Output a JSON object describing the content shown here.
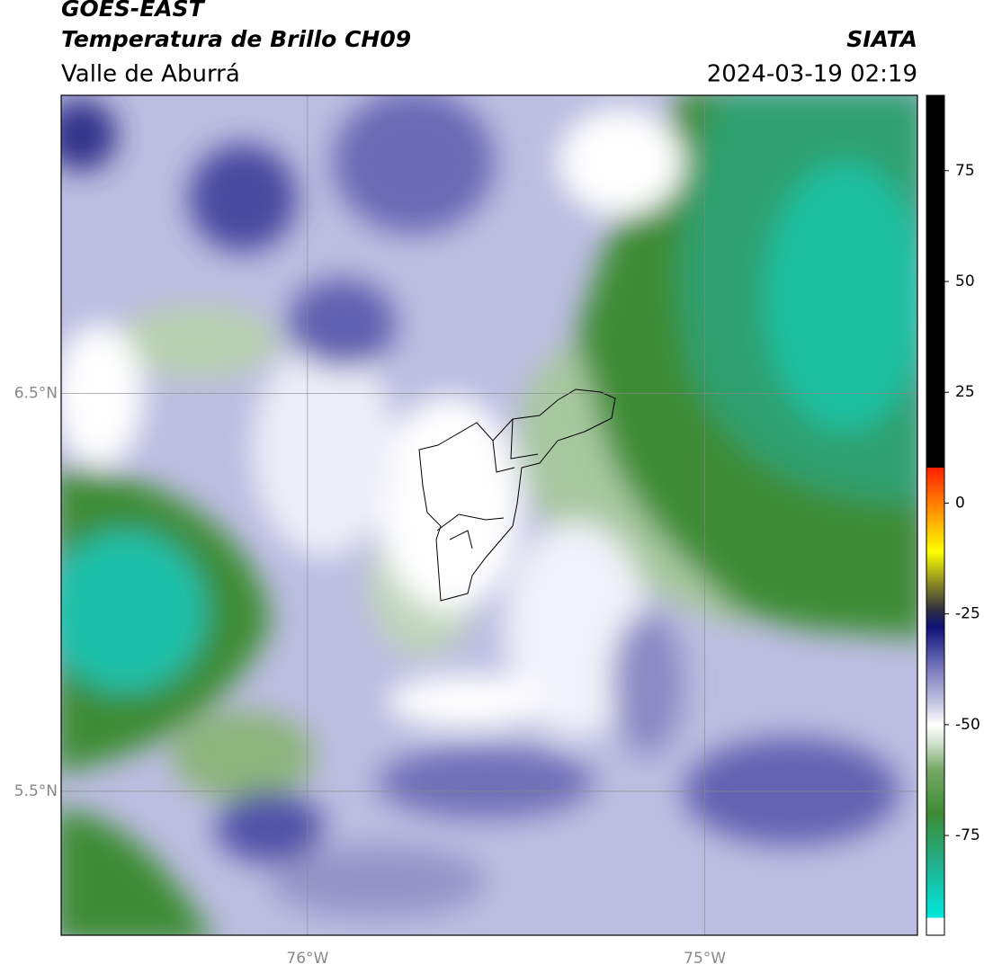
{
  "header": {
    "title": "GOES-EAST",
    "subtitle": "Temperatura de Brillo CH09",
    "region": "Valle de Aburrá",
    "source": "SIATA",
    "datetime": "2024-03-19 02:19"
  },
  "map": {
    "lon_lim": [
      -76.62,
      -74.465
    ],
    "lat_lim": [
      5.138,
      7.25
    ],
    "lat_ticks": [
      {
        "value": 6.5,
        "label": "6.5°N"
      },
      {
        "value": 5.5,
        "label": "5.5°N"
      }
    ],
    "lon_ticks": [
      {
        "value": -76,
        "label": "76°W"
      },
      {
        "value": -75,
        "label": "75°W"
      }
    ],
    "grid": true
  },
  "colorbar": {
    "lim": [
      -97.5,
      92
    ],
    "ticks": [
      75,
      50,
      25,
      0,
      -25,
      -50,
      -75
    ],
    "stops": [
      {
        "value": -97.5,
        "color": "#ffffff"
      },
      {
        "value": -93.5,
        "color": "#ffffff"
      },
      {
        "value": -93.5,
        "color": "#00e8e0"
      },
      {
        "value": -82,
        "color": "#1fb392"
      },
      {
        "value": -70,
        "color": "#3c8c34"
      },
      {
        "value": -60,
        "color": "#78a868"
      },
      {
        "value": -54,
        "color": "#d2e2ce"
      },
      {
        "value": -50,
        "color": "#ffffff"
      },
      {
        "value": -45,
        "color": "#c4c4e2"
      },
      {
        "value": -36,
        "color": "#6a6ab6"
      },
      {
        "value": -28,
        "color": "#101078"
      },
      {
        "value": -24,
        "color": "#303040"
      },
      {
        "value": -17,
        "color": "#9a9a20"
      },
      {
        "value": -11,
        "color": "#ffff00"
      },
      {
        "value": -3,
        "color": "#ffa000"
      },
      {
        "value": 8,
        "color": "#ff2000"
      },
      {
        "value": 8,
        "color": "#000000"
      },
      {
        "value": 92,
        "color": "#000000"
      }
    ]
  }
}
